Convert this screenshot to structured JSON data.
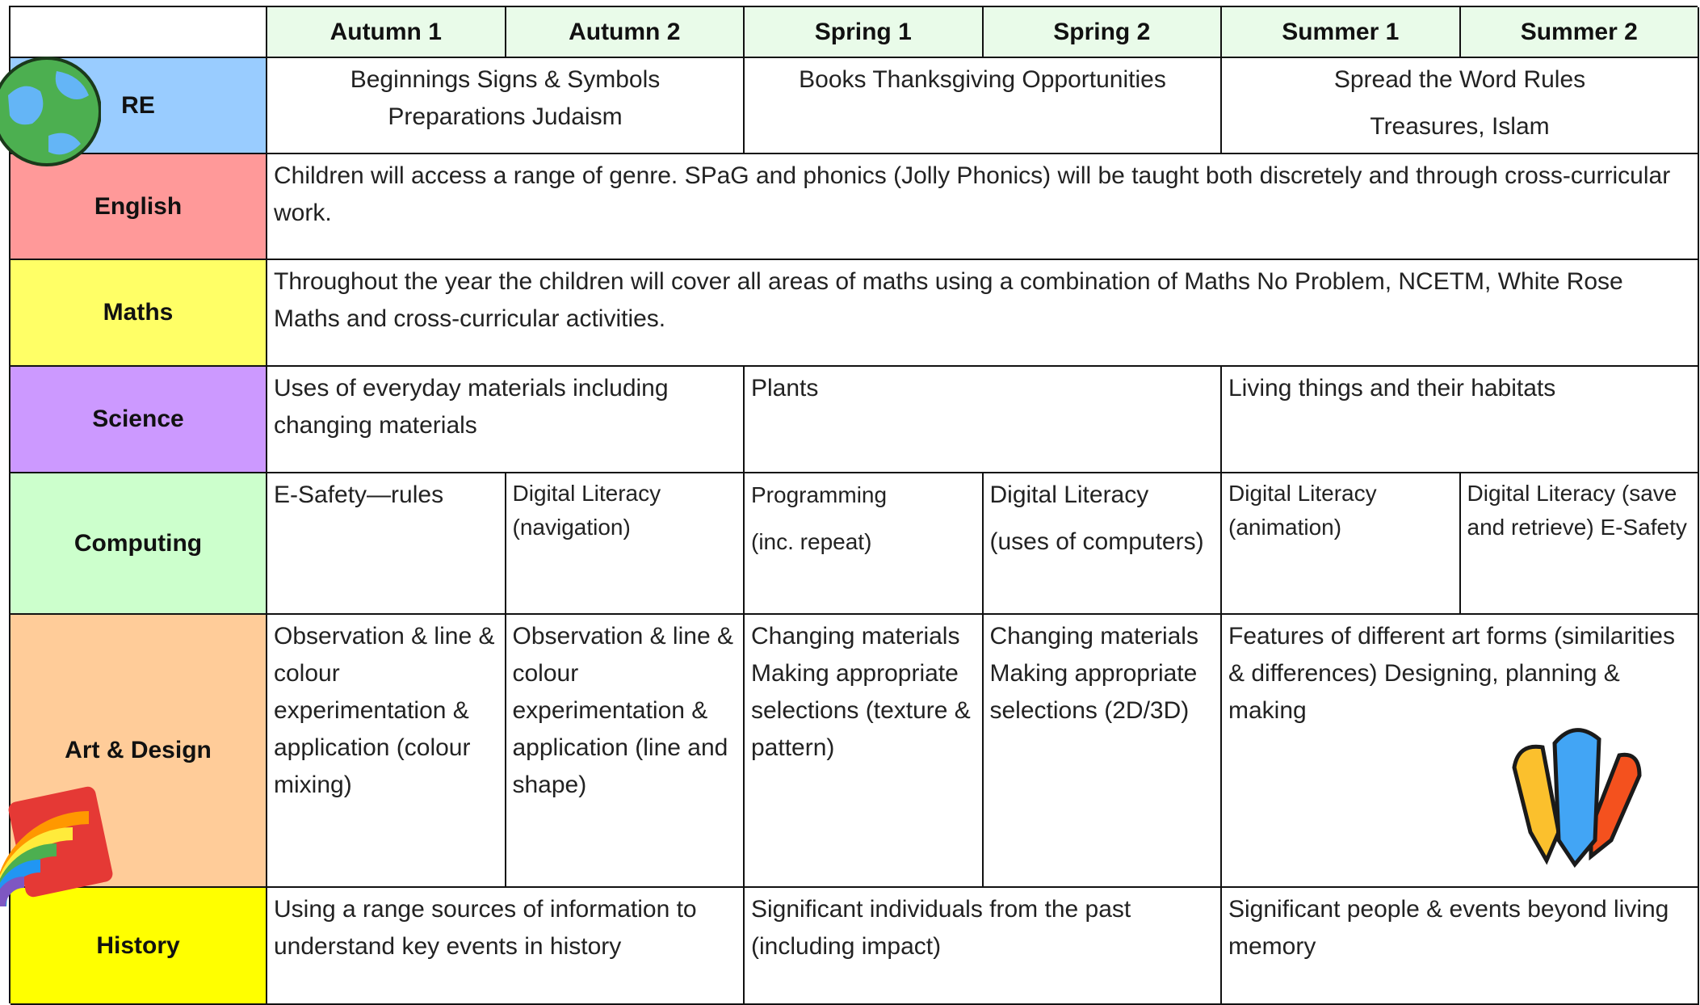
{
  "header": {
    "columns": [
      "Autumn 1",
      "Autumn 2",
      "Spring 1",
      "Spring 2",
      "Summer 1",
      "Summer 2"
    ]
  },
  "rows": [
    {
      "subject": "RE",
      "cells": [
        [
          "Beginnings   Signs & Symbols",
          "Preparations   Judaism"
        ],
        [
          "Books   Thanksgiving   Opportunities"
        ],
        [
          "Spread the Word   Rules",
          "Treasures, Islam"
        ]
      ]
    },
    {
      "subject": "English",
      "cells": [
        [
          "Children will access a range of genre. SPaG and phonics (Jolly Phonics) will be taught both discretely and through cross-curricular work."
        ]
      ]
    },
    {
      "subject": "Maths",
      "cells": [
        [
          "Throughout the year the children will cover all areas of maths using a combination of Maths No Problem, NCETM, White Rose Maths and cross-curricular activities."
        ]
      ]
    },
    {
      "subject": "Science",
      "cells": [
        [
          "Uses of everyday materials including changing materials"
        ],
        [
          "Plants"
        ],
        [
          "Living things and their habitats"
        ]
      ]
    },
    {
      "subject": "Computing",
      "cells": [
        [
          "E-Safety—rules"
        ],
        [
          "Digital Literacy (navigation)"
        ],
        [
          "Programming",
          "(inc. repeat)"
        ],
        [
          "Digital Literacy",
          "(uses of computers)"
        ],
        [
          "Digital Literacy (animation)"
        ],
        [
          "Digital Literacy (save and retrieve) E-Safety"
        ]
      ]
    },
    {
      "subject": "Art & Design",
      "cells": [
        [
          "Observation & line & colour experimentation & application (colour mixing)"
        ],
        [
          "Observation & line & colour experimentation & application (line and shape)"
        ],
        [
          "Changing materials Making appropriate selections (texture & pattern)"
        ],
        [
          "Changing materials Making appropriate selections (2D/3D)"
        ],
        [
          "Features of different art forms (similarities & differences) Designing, planning & making"
        ]
      ]
    },
    {
      "subject": "History",
      "cells": [
        [
          "Using a range sources of information to understand key events in history"
        ],
        [
          "Significant individuals from the past (including impact)"
        ],
        [
          "Significant people & events beyond living memory"
        ]
      ]
    }
  ]
}
